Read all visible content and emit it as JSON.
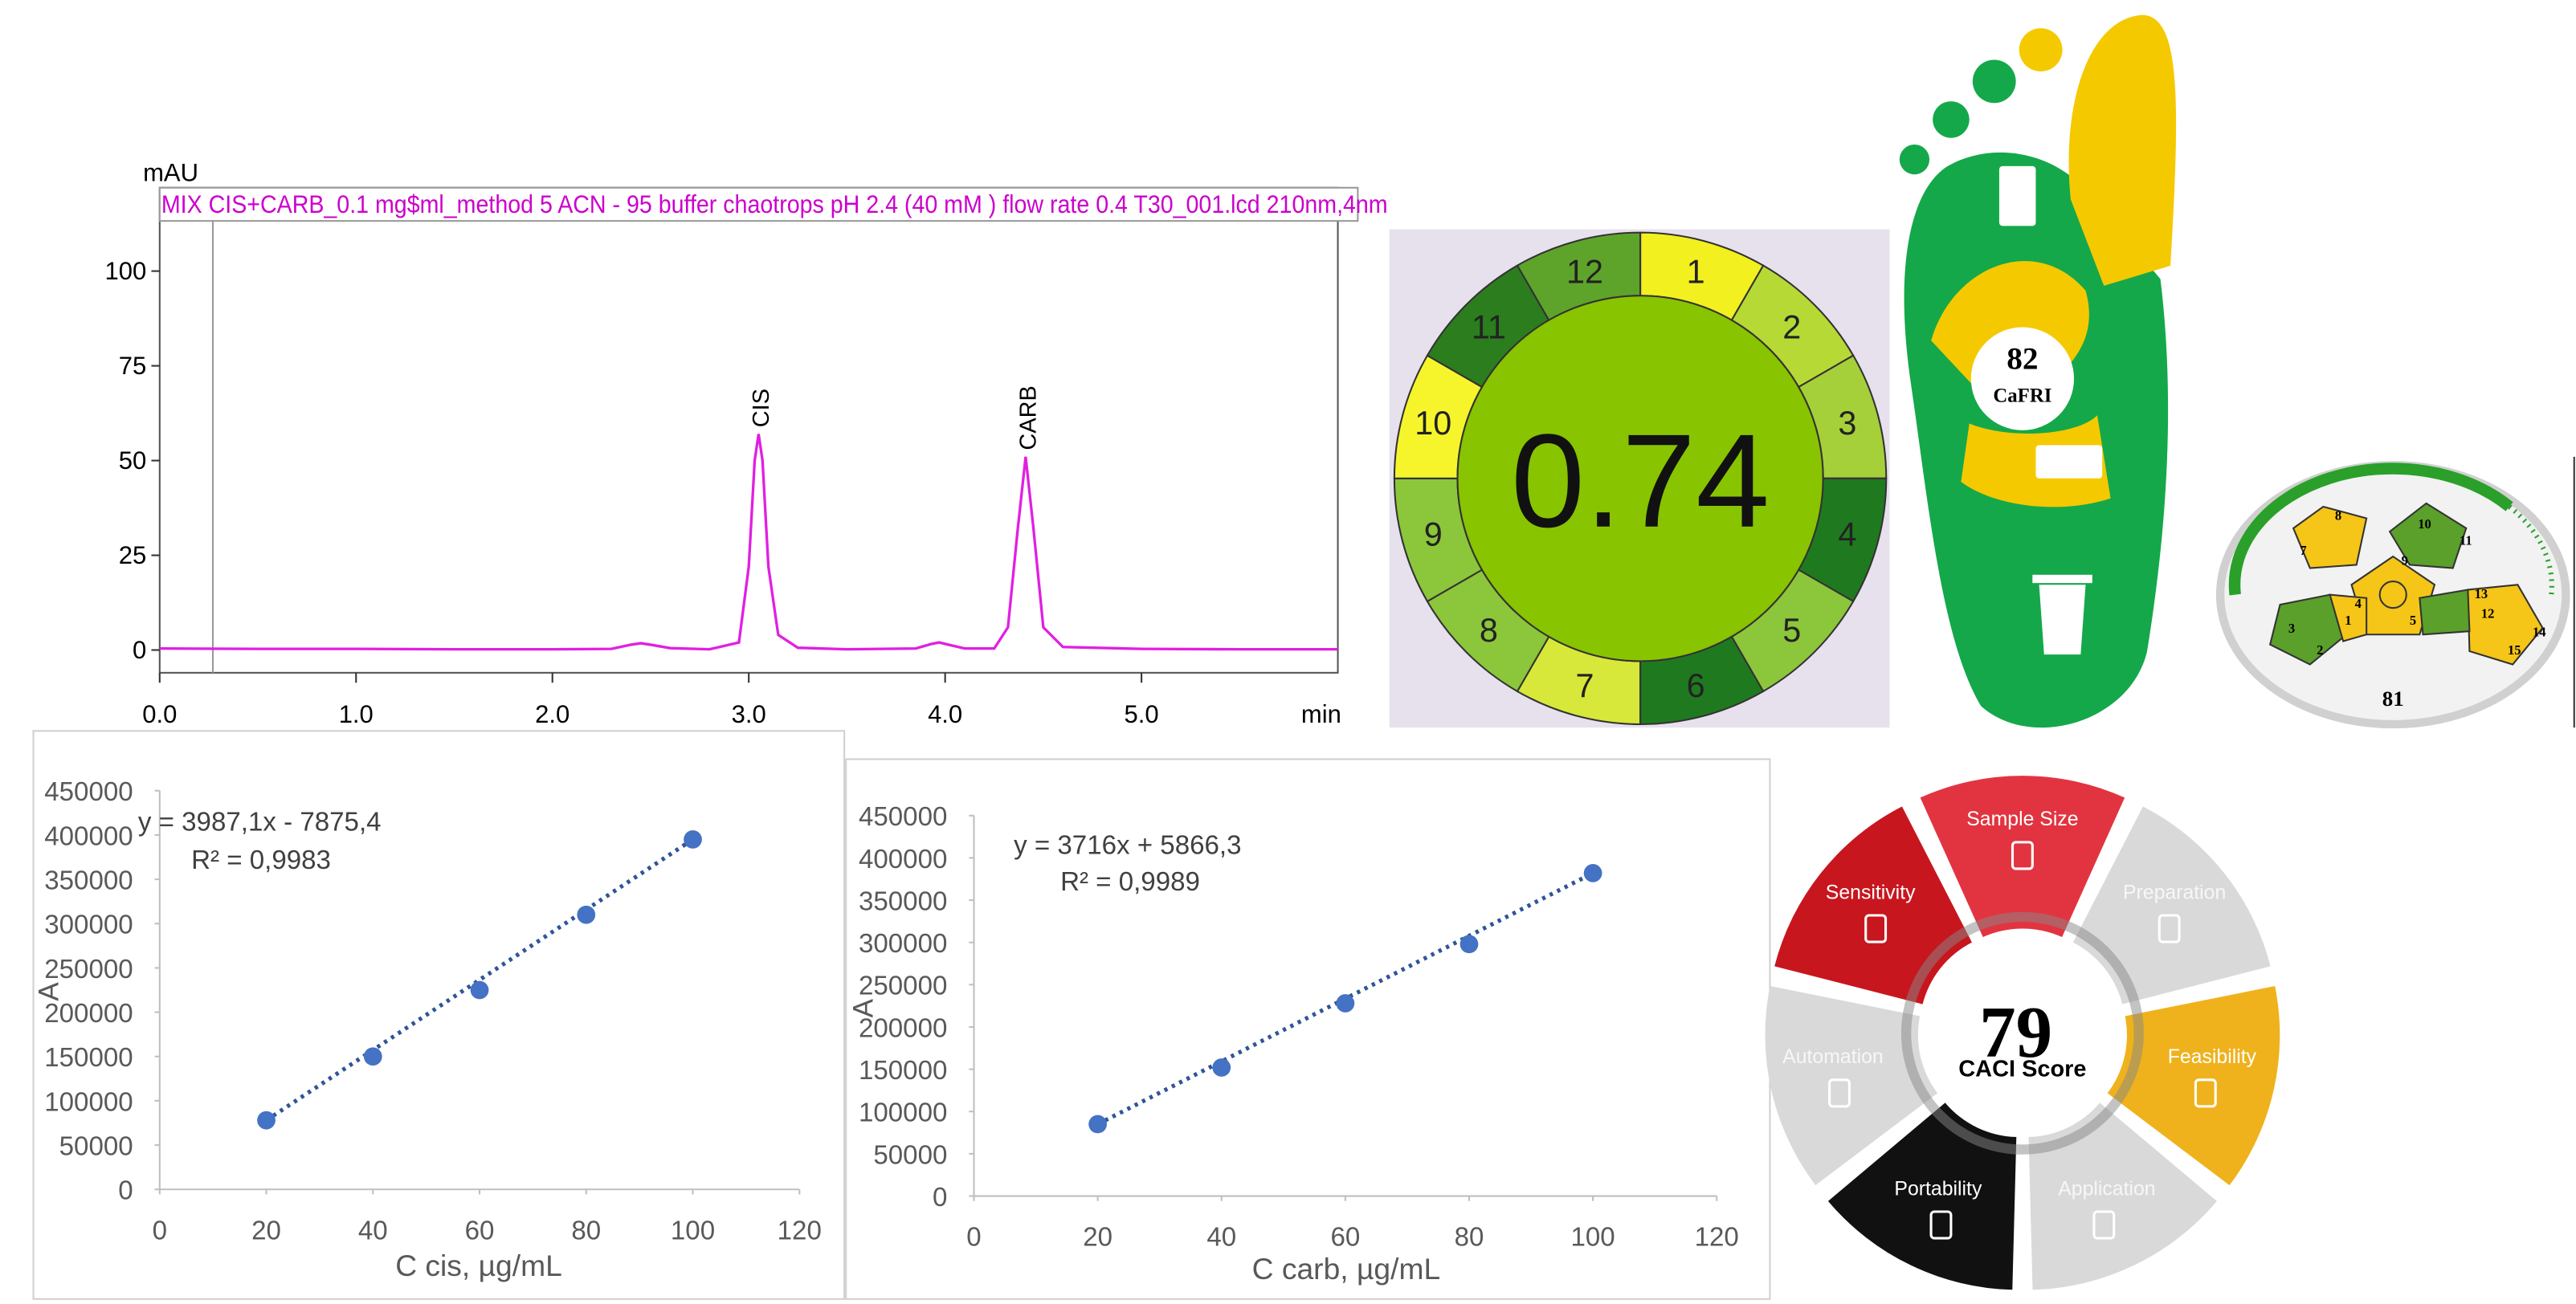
{
  "chart_data": [
    {
      "type": "line",
      "title": "MIX CIS+CARB_0.1 mg$ml_method 5 ACN - 95 buffer chaotrops pH 2.4 (40 mM ) flow rate 0.4 T30_001.lcd 210nm,4nm",
      "ylabel": "mAU",
      "xlabel": "min",
      "color": "#e020e0",
      "x": [
        0,
        0.5,
        1,
        1.5,
        2,
        2.3,
        2.4,
        2.45,
        2.5,
        2.6,
        2.8,
        2.95,
        3.0,
        3.03,
        3.05,
        3.07,
        3.1,
        3.15,
        3.25,
        3.5,
        3.85,
        3.93,
        3.97,
        4.01,
        4.1,
        4.25,
        4.32,
        4.37,
        4.41,
        4.45,
        4.5,
        4.6,
        5.0,
        5.5,
        6.0
      ],
      "values": [
        0.4,
        0.3,
        0.3,
        0.2,
        0.2,
        0.3,
        1.4,
        1.8,
        1.4,
        0.5,
        0.2,
        2,
        22,
        50,
        57,
        50,
        22,
        4,
        0.6,
        0.2,
        0.4,
        1.6,
        2,
        1.5,
        0.4,
        0.4,
        6,
        32,
        51,
        32,
        6,
        0.8,
        0.3,
        0.2,
        0.2
      ],
      "xlim": [
        0,
        6.0
      ],
      "xticks": [
        {
          "value": 0,
          "label": "0.0"
        },
        {
          "value": 1,
          "label": "1.0"
        },
        {
          "value": 2,
          "label": "2.0"
        },
        {
          "value": 3,
          "label": "3.0"
        },
        {
          "value": 4,
          "label": "4.0"
        },
        {
          "value": 5,
          "label": "5.0"
        }
      ],
      "ylim": [
        -6,
        122
      ],
      "yticks": [
        0,
        25,
        50,
        75,
        100
      ],
      "annotations": [
        {
          "text": "CIS",
          "x": 3.05,
          "y": 57
        },
        {
          "text": "CARB",
          "x": 4.41,
          "y": 51
        }
      ]
    },
    {
      "type": "scatter",
      "xlabel": "C cis, µg/mL",
      "ylabel": "A",
      "color": "#4472c4",
      "x": [
        20,
        40,
        60,
        80,
        100
      ],
      "values": [
        78000,
        150000,
        225000,
        310000,
        395000
      ],
      "xlim": [
        0,
        120
      ],
      "xticks": [
        0,
        20,
        40,
        60,
        80,
        100,
        120
      ],
      "ylim": [
        0,
        450000
      ],
      "yticks": [
        0,
        50000,
        100000,
        150000,
        200000,
        250000,
        300000,
        350000,
        400000,
        450000
      ],
      "annotations": [
        "y = 3987,1x - 7875,4",
        "R² = 0,9983"
      ]
    },
    {
      "type": "scatter",
      "xlabel": "C carb, µg/mL",
      "ylabel": "A",
      "color": "#4472c4",
      "x": [
        20,
        40,
        60,
        80,
        100
      ],
      "values": [
        85000,
        152000,
        228000,
        298000,
        382000
      ],
      "xlim": [
        0,
        120
      ],
      "xticks": [
        0,
        20,
        40,
        60,
        80,
        100,
        120
      ],
      "ylim": [
        0,
        450000
      ],
      "yticks": [
        0,
        50000,
        100000,
        150000,
        200000,
        250000,
        300000,
        350000,
        400000,
        450000
      ],
      "annotations": [
        "y = 3716x + 5866,3",
        "R² = 0,9989"
      ]
    }
  ],
  "agree": {
    "score": "0.74",
    "criteria": [
      {
        "label": "1",
        "color": "#f2f01e"
      },
      {
        "label": "2",
        "color": "#b7d936"
      },
      {
        "label": "3",
        "color": "#a6d03a"
      },
      {
        "label": "4",
        "color": "#1f7a1f"
      },
      {
        "label": "5",
        "color": "#8cc63a"
      },
      {
        "label": "6",
        "color": "#1f7a1f"
      },
      {
        "label": "7",
        "color": "#d8e83a"
      },
      {
        "label": "8",
        "color": "#8cc63a"
      },
      {
        "label": "9",
        "color": "#8cc63a"
      },
      {
        "label": "10",
        "color": "#f6f52c"
      },
      {
        "label": "11",
        "color": "#2b7d1e"
      },
      {
        "label": "12",
        "color": "#5ea42a"
      }
    ]
  },
  "cafri": {
    "score": "82",
    "name": "CaFRI"
  },
  "agreeprep": {
    "score": "81",
    "criteria": [
      "1",
      "2",
      "3",
      "4",
      "5",
      "7",
      "8",
      "9",
      "10",
      "11",
      "12",
      "13",
      "14",
      "15"
    ]
  },
  "caci": {
    "score": "79",
    "caption": "CACI Score",
    "segments": [
      {
        "label": "Sample Size",
        "color": "#e23440"
      },
      {
        "label": "Preparation",
        "color": "#d9d9d9"
      },
      {
        "label": "Feasibility",
        "color": "#efb21c"
      },
      {
        "label": "Application",
        "color": "#d9d9d9"
      },
      {
        "label": "Portability",
        "color": "#111111"
      },
      {
        "label": "Automation",
        "color": "#d9d9d9"
      },
      {
        "label": "Sensitivity",
        "color": "#c8161e"
      }
    ]
  }
}
